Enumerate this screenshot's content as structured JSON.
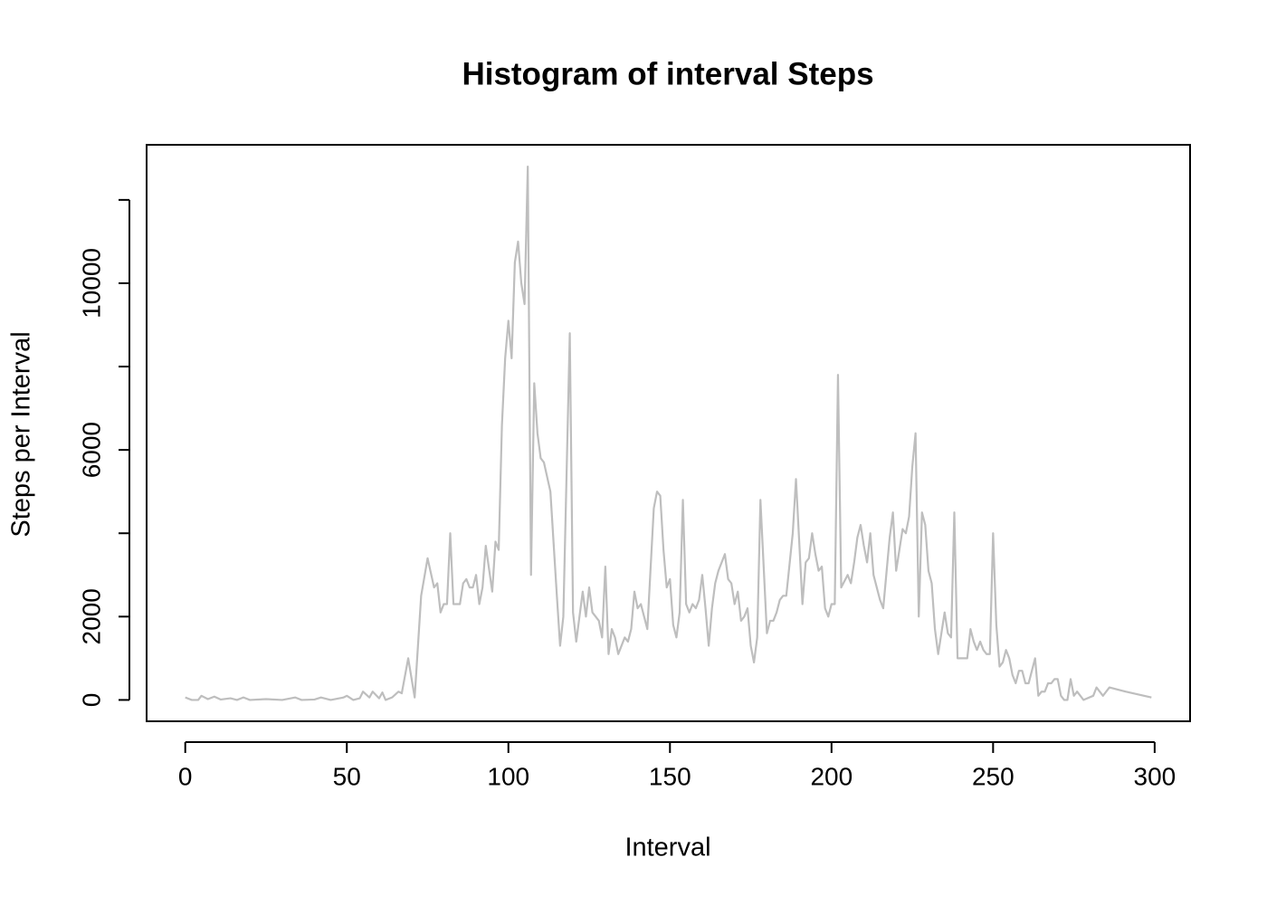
{
  "chart_data": {
    "type": "line",
    "title": "Histogram of interval Steps",
    "xlabel": "Interval",
    "ylabel": "Steps per Interval",
    "color": "#bebebe",
    "xlim": [
      -11.96,
      310.96
    ],
    "ylim": [
      -512,
      13322
    ],
    "xticks": [
      0,
      50,
      100,
      150,
      200,
      250,
      300
    ],
    "yticks": [
      0,
      2000,
      6000,
      10000
    ],
    "yticks_unlabeled": [
      4000,
      8000,
      12000
    ],
    "x": [
      0,
      2,
      4,
      5,
      7,
      9,
      11,
      14,
      16,
      18,
      20,
      25,
      30,
      34,
      36,
      40,
      42,
      45,
      49,
      50,
      52,
      54,
      55,
      57,
      58,
      60,
      61,
      62,
      64,
      66,
      67,
      69,
      71,
      73,
      75,
      77,
      78,
      79,
      80,
      81,
      82,
      83,
      85,
      86,
      87,
      88,
      89,
      90,
      91,
      92,
      93,
      95,
      96,
      97,
      98,
      99,
      100,
      101,
      102,
      103,
      104,
      105,
      106,
      107,
      108,
      109,
      110,
      111,
      113,
      115,
      116,
      117,
      119,
      120,
      121,
      123,
      124,
      125,
      126,
      128,
      129,
      130,
      131,
      132,
      133,
      134,
      135,
      136,
      137,
      138,
      139,
      140,
      141,
      142,
      143,
      145,
      146,
      147,
      148,
      149,
      150,
      151,
      152,
      153,
      154,
      155,
      156,
      157,
      158,
      159,
      160,
      161,
      162,
      163,
      164,
      165,
      167,
      168,
      169,
      170,
      171,
      172,
      173,
      174,
      175,
      176,
      177,
      178,
      180,
      181,
      182,
      183,
      184,
      185,
      186,
      188,
      189,
      190,
      191,
      192,
      193,
      194,
      195,
      196,
      197,
      198,
      199,
      200,
      201,
      202,
      203,
      205,
      206,
      207,
      208,
      209,
      210,
      211,
      212,
      213,
      214,
      215,
      216,
      218,
      219,
      220,
      221,
      222,
      223,
      224,
      225,
      226,
      227,
      228,
      229,
      230,
      231,
      232,
      233,
      234,
      235,
      236,
      237,
      238,
      239,
      240,
      242,
      243,
      244,
      245,
      246,
      247,
      248,
      249,
      250,
      251,
      252,
      253,
      254,
      255,
      256,
      257,
      258,
      259,
      260,
      261,
      262,
      263,
      264,
      265,
      266,
      267,
      268,
      269,
      270,
      271,
      272,
      273,
      274,
      275,
      276,
      278,
      281,
      282,
      284,
      286,
      291,
      299
    ],
    "values": [
      60,
      0,
      0,
      100,
      20,
      80,
      10,
      40,
      0,
      60,
      0,
      20,
      0,
      60,
      0,
      10,
      60,
      0,
      60,
      100,
      0,
      40,
      200,
      60,
      200,
      40,
      180,
      0,
      60,
      200,
      160,
      1000,
      60,
      2500,
      3400,
      2700,
      2800,
      2100,
      2300,
      2300,
      4000,
      2300,
      2300,
      2800,
      2900,
      2700,
      2700,
      3000,
      2300,
      2700,
      3700,
      2600,
      3800,
      3600,
      6600,
      8200,
      9100,
      8200,
      10500,
      11000,
      10000,
      9500,
      12800,
      3000,
      7600,
      6400,
      5800,
      5700,
      5000,
      2500,
      1300,
      2000,
      8800,
      2100,
      1400,
      2600,
      2000,
      2700,
      2100,
      1900,
      1500,
      3200,
      1100,
      1700,
      1500,
      1100,
      1300,
      1500,
      1400,
      1700,
      2600,
      2200,
      2300,
      2000,
      1700,
      4600,
      5000,
      4900,
      3600,
      2700,
      2900,
      1800,
      1500,
      2100,
      4800,
      2300,
      2100,
      2300,
      2200,
      2400,
      3000,
      2200,
      1300,
      2200,
      2800,
      3100,
      3500,
      2900,
      2800,
      2300,
      2600,
      1900,
      2000,
      2200,
      1300,
      900,
      1500,
      4800,
      1600,
      1900,
      1900,
      2100,
      2400,
      2500,
      2500,
      4000,
      5300,
      3800,
      2300,
      3300,
      3400,
      4000,
      3500,
      3100,
      3200,
      2200,
      2000,
      2300,
      2300,
      7800,
      2700,
      3000,
      2800,
      3300,
      3900,
      4200,
      3700,
      3300,
      4000,
      3000,
      2700,
      2400,
      2200,
      3900,
      4500,
      3100,
      3600,
      4100,
      4000,
      4400,
      5600,
      6400,
      2000,
      4500,
      4200,
      3100,
      2800,
      1700,
      1100,
      1600,
      2100,
      1600,
      1500,
      4500,
      1000,
      1000,
      1000,
      1700,
      1400,
      1200,
      1400,
      1200,
      1100,
      1100,
      4000,
      1800,
      800,
      900,
      1200,
      1000,
      600,
      400,
      700,
      700,
      400,
      400,
      700,
      1000,
      100,
      200,
      200,
      400,
      400,
      500,
      500,
      100,
      0,
      0,
      500,
      100,
      200,
      0,
      100,
      300,
      100,
      300,
      200,
      60
    ]
  }
}
